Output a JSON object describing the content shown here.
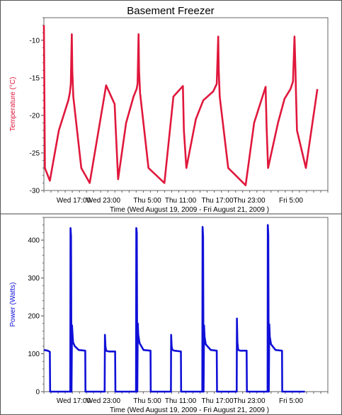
{
  "chart_data": [
    {
      "type": "line",
      "title": "Basement Freezer",
      "xlabel": "Time (Wed  August 19, 2009  - Fri  August 21, 2009 )",
      "ylabel": "Temperature (°C)",
      "ylim": [
        -30,
        -7
      ],
      "yticks": [
        -30,
        -25,
        -20,
        -15,
        -10
      ],
      "ytick_labels": [
        "-30",
        "-25",
        "-20",
        "-15",
        "-10"
      ],
      "x_tick_labels": [
        "Wed 17:00",
        "Wed 23:00",
        "Thu 5:00",
        "Thu 11:00",
        "Thu 17:00",
        "Thu 23:00",
        "Fri 5:00"
      ],
      "color": "#e0173c",
      "grid": false,
      "series": [
        {
          "x": [
            0,
            0.2,
            1.2,
            3,
            4.9,
            5.2,
            5.4,
            5.6,
            5.7,
            5.9,
            7.5,
            9.2,
            12.5,
            14.2,
            14.4,
            14.9,
            16.5,
            18,
            18.6,
            18.8,
            19,
            19.1,
            19.3,
            21,
            24.2,
            26,
            27.9,
            28.1,
            28.6,
            30.5,
            32,
            34,
            34.7,
            35,
            35.1,
            35.3,
            37,
            40.5,
            42.2,
            44.5,
            44.7,
            45,
            47,
            48.3,
            49.5,
            50,
            50.3,
            50.5,
            50.6,
            50.8,
            52.6,
            54.9
          ],
          "y": [
            -8,
            -27,
            -28.7,
            -22,
            -18,
            -17,
            -15.8,
            -9.2,
            -14,
            -17.5,
            -27,
            -29,
            -16,
            -18.5,
            -21.5,
            -28.5,
            -21,
            -17.5,
            -16.5,
            -15.8,
            -9.2,
            -14,
            -17,
            -27,
            -29,
            -17.5,
            -16.1,
            -22,
            -27,
            -20.5,
            -18,
            -16.8,
            -15.8,
            -9.5,
            -14,
            -17.5,
            -27,
            -29.3,
            -21,
            -16.2,
            -21.5,
            -27,
            -21,
            -17.8,
            -16.5,
            -15.5,
            -9.5,
            -14,
            -17,
            -22,
            -27,
            -16.5
          ]
        }
      ]
    },
    {
      "type": "line",
      "title": "",
      "xlabel": "Time (Wed  August 19, 2009  - Fri  August 21, 2009 )",
      "ylabel": "Power (Watts)",
      "ylim": [
        0,
        460
      ],
      "yticks": [
        0,
        100,
        200,
        300,
        400
      ],
      "ytick_labels": [
        "0",
        "100",
        "200",
        "300",
        "400"
      ],
      "x_tick_labels": [
        "Wed 17:00",
        "Wed 23:00",
        "Thu 5:00",
        "Thu 11:00",
        "Thu 17:00",
        "Thu 23:00",
        "Fri 5:00"
      ],
      "color": "#1010d8",
      "grid": false,
      "series": [
        {
          "x": [
            0,
            0.8,
            1.2,
            1.25,
            5.3,
            5.35,
            5.45,
            5.55,
            5.65,
            5.75,
            5.85,
            6.2,
            7,
            8.3,
            8.35,
            12.2,
            12.25,
            12.35,
            12.5,
            13,
            14.3,
            14.35,
            18.5,
            18.55,
            18.65,
            18.75,
            18.85,
            18.95,
            19.2,
            20,
            21.4,
            21.45,
            25.5,
            25.55,
            25.65,
            25.8,
            26.2,
            27.5,
            27.55,
            31.8,
            31.85,
            31.95,
            32.05,
            32.15,
            32.25,
            32.5,
            33.5,
            34.7,
            34.75,
            38.7,
            38.75,
            38.85,
            39,
            39.4,
            40.7,
            40.75,
            44.9,
            44.95,
            45.05,
            45.15,
            45.25,
            45.35,
            45.6,
            46.5,
            47.8,
            47.85,
            52.4
          ],
          "y": [
            110,
            108,
            105,
            0,
            0,
            432,
            410,
            0,
            175,
            150,
            130,
            120,
            110,
            108,
            0,
            0,
            150,
            120,
            108,
            106,
            106,
            0,
            0,
            432,
            420,
            0,
            180,
            150,
            128,
            110,
            108,
            0,
            0,
            150,
            120,
            110,
            108,
            106,
            0,
            0,
            435,
            410,
            0,
            175,
            145,
            125,
            110,
            108,
            0,
            0,
            193,
            130,
            110,
            108,
            108,
            0,
            0,
            440,
            415,
            0,
            178,
            145,
            125,
            110,
            108,
            0,
            0
          ]
        }
      ]
    }
  ]
}
